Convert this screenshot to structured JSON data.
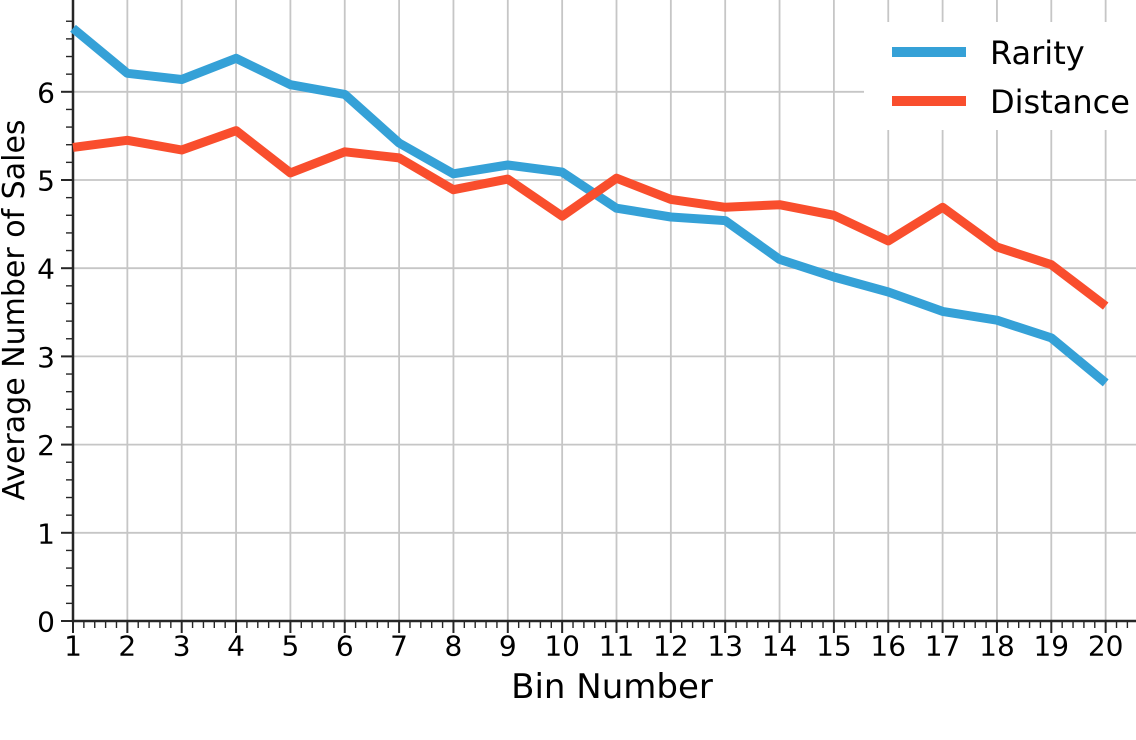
{
  "chart_data": {
    "type": "line",
    "title": "",
    "xlabel": "Bin Number",
    "ylabel": "Average Number of Sales",
    "x": [
      1,
      2,
      3,
      4,
      5,
      6,
      7,
      8,
      9,
      10,
      11,
      12,
      13,
      14,
      15,
      16,
      17,
      18,
      19,
      20
    ],
    "xtick_labels": [
      "1",
      "2",
      "3",
      "4",
      "5",
      "6",
      "7",
      "8",
      "9",
      "10",
      "11",
      "12",
      "13",
      "14",
      "15",
      "16",
      "17",
      "18",
      "19",
      "20"
    ],
    "yticks": [
      0,
      1,
      2,
      3,
      4,
      5,
      6
    ],
    "ytick_labels": [
      "0",
      "1",
      "2",
      "3",
      "4",
      "5",
      "6"
    ],
    "ylim_visible": [
      0,
      7.04
    ],
    "xlim_visible": [
      1,
      20.55
    ],
    "grid": true,
    "legend": {
      "position": "upper right",
      "entries": [
        {
          "label": "Rarity",
          "color": "#35a1d7"
        },
        {
          "label": "Distance",
          "color": "#f94e2d"
        }
      ]
    },
    "series": [
      {
        "name": "Rarity",
        "color": "#35a1d7",
        "values": [
          6.72,
          6.21,
          6.14,
          6.38,
          6.08,
          5.97,
          5.42,
          5.07,
          5.17,
          5.09,
          4.68,
          4.58,
          4.54,
          4.1,
          3.9,
          3.73,
          3.51,
          3.41,
          3.21,
          2.7
        ]
      },
      {
        "name": "Distance",
        "color": "#f94e2d",
        "values": [
          5.37,
          5.45,
          5.34,
          5.56,
          5.08,
          5.32,
          5.25,
          4.89,
          5.01,
          4.59,
          5.02,
          4.78,
          4.69,
          4.72,
          4.6,
          4.31,
          4.69,
          4.24,
          4.04,
          3.57
        ]
      }
    ],
    "colors": {
      "grid": "#c6c6c6",
      "spine": "#262626",
      "tick": "#262626",
      "text": "#000000",
      "background": "#ffffff"
    }
  }
}
